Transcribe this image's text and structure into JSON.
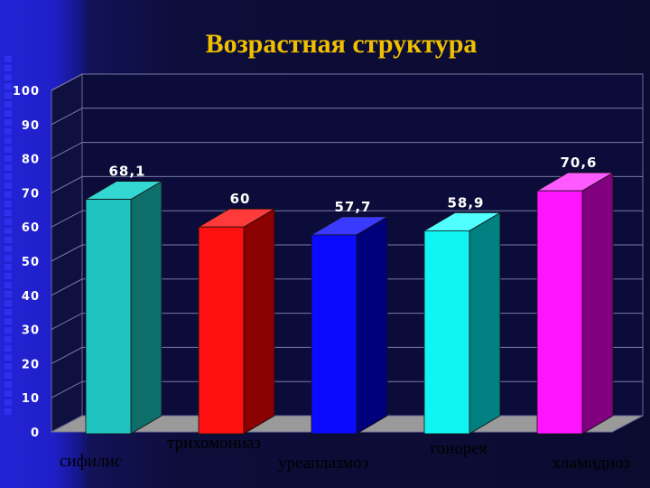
{
  "chart_data": {
    "type": "bar",
    "title": "Возрастная структура",
    "categories": [
      "сифилис",
      "трихомониаз",
      "уреаплазмоз",
      "гонорея",
      "хламидиоз"
    ],
    "values": [
      68.1,
      60,
      57.7,
      58.9,
      70.6
    ],
    "value_labels": [
      "68,1",
      "60",
      "57,7",
      "58,9",
      "70,6"
    ],
    "ylim": [
      0,
      100
    ],
    "yticks": [
      0,
      10,
      20,
      30,
      40,
      50,
      60,
      70,
      80,
      90,
      100
    ],
    "bar_colors": [
      {
        "front": "#1fc4c0",
        "side": "#0e6e6a",
        "top": "#34d8d2"
      },
      {
        "front": "#ff1010",
        "side": "#8b0000",
        "top": "#ff3a3a"
      },
      {
        "front": "#0a0aff",
        "side": "#00007a",
        "top": "#3a3aff"
      },
      {
        "front": "#12f4f4",
        "side": "#008080",
        "top": "#52ffff"
      },
      {
        "front": "#ff14ff",
        "side": "#800080",
        "top": "#ff5aff"
      }
    ],
    "grid": true,
    "legend": "none"
  }
}
